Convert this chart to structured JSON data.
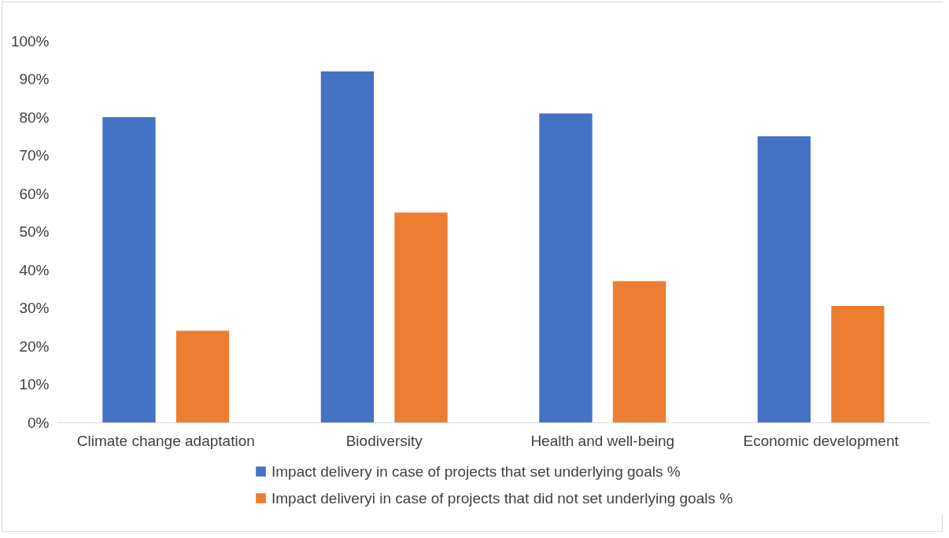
{
  "chart_data": {
    "type": "bar",
    "categories": [
      "Climate change adaptation",
      "Biodiversity",
      "Health  and well-being",
      "Economic development"
    ],
    "series": [
      {
        "name": "Impact delivery in case of projects that set underlying goals %",
        "color": "#4472c4",
        "values": [
          80,
          92,
          81,
          75
        ]
      },
      {
        "name": "Impact deliveryi in case of projects that did not set underlying goals %",
        "color": "#ed7d31",
        "values": [
          24,
          55,
          37,
          30.5
        ]
      }
    ],
    "ylim": [
      0,
      100
    ],
    "yticks": [
      {
        "value": 0,
        "label": "0%"
      },
      {
        "value": 10,
        "label": "10%"
      },
      {
        "value": 20,
        "label": "20%"
      },
      {
        "value": 30,
        "label": "30%"
      },
      {
        "value": 40,
        "label": "40%"
      },
      {
        "value": 50,
        "label": "50%"
      },
      {
        "value": 60,
        "label": "60%"
      },
      {
        "value": 70,
        "label": "70%"
      },
      {
        "value": 80,
        "label": "80%"
      },
      {
        "value": 90,
        "label": "90%"
      },
      {
        "value": 100,
        "label": "100%"
      }
    ],
    "grid": false,
    "legend": "bottom"
  }
}
